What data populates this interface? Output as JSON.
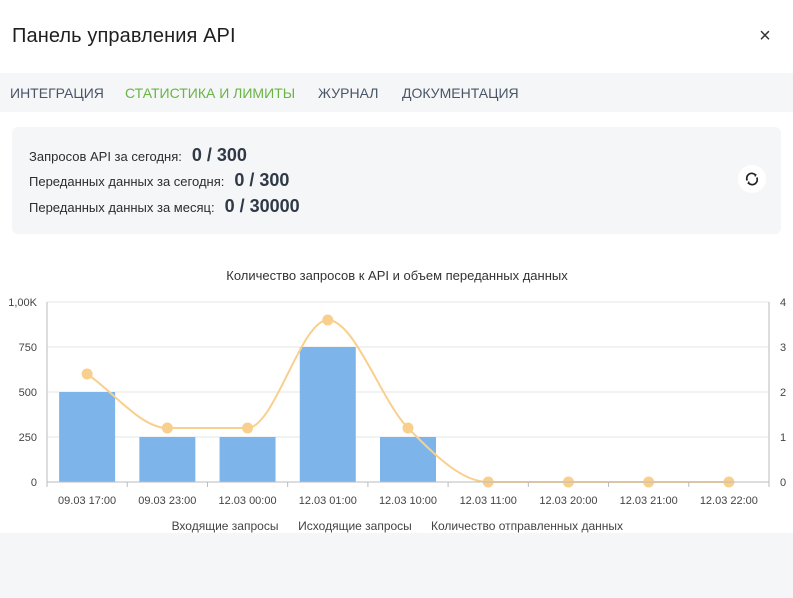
{
  "header": {
    "title": "Панель управления API",
    "close_icon": "×"
  },
  "tabs": [
    {
      "label": "ИНТЕГРАЦИЯ",
      "active": false
    },
    {
      "label": "СТАТИСТИКА И ЛИМИТЫ",
      "active": true
    },
    {
      "label": "ЖУРНАЛ",
      "active": false
    },
    {
      "label": "ДОКУМЕНТАЦИЯ",
      "active": false
    }
  ],
  "stats": [
    {
      "label": "Запросов API за сегодня:",
      "value": "0 / 300"
    },
    {
      "label": "Переданных данных за сегодня:",
      "value": "0 / 300"
    },
    {
      "label": "Переданных данных за месяц:",
      "value": "0 / 30000"
    }
  ],
  "colors": {
    "accent": "#6ab446",
    "bar": "#7db5ea",
    "line": "#f9cf8d"
  },
  "chart_data": {
    "type": "bar",
    "title": "Количество запросов к API и объем переданных данных",
    "categories": [
      "09.03 17:00",
      "09.03 23:00",
      "12.03 00:00",
      "12.03 01:00",
      "12.03 10:00",
      "12.03 11:00",
      "12.03 20:00",
      "12.03 21:00",
      "12.03 22:00"
    ],
    "left_axis": {
      "ticks": [
        "0",
        "250",
        "500",
        "750",
        "1,00K"
      ],
      "range": [
        0,
        1000
      ]
    },
    "right_axis": {
      "ticks": [
        "0",
        "1",
        "2",
        "3",
        "4"
      ],
      "range": [
        0,
        4
      ]
    },
    "series": [
      {
        "name": "Входящие запросы",
        "type": "bar",
        "axis": "left",
        "values": [
          500,
          250,
          250,
          750,
          250,
          0,
          0,
          0,
          0
        ]
      },
      {
        "name": "Исходящие запросы",
        "type": "bar",
        "axis": "left",
        "values": [
          0,
          0,
          0,
          0,
          0,
          0,
          0,
          0,
          0
        ]
      },
      {
        "name": "Количество отправленных данных",
        "type": "line",
        "axis": "right",
        "values": [
          2.4,
          1.2,
          1.2,
          3.6,
          1.2,
          0,
          0,
          0,
          0
        ]
      }
    ],
    "legend_position": "bottom",
    "grid": true
  }
}
